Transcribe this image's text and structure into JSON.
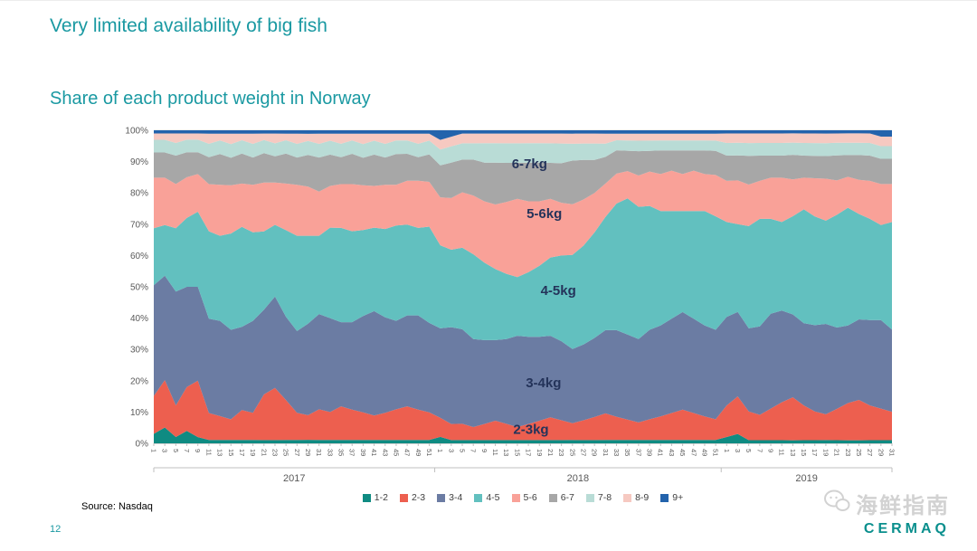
{
  "slide": {
    "title": "Very limited availability of big fish",
    "subtitle": "Share of each product weight in Norway",
    "source": "Source: Nasdaq",
    "page_number": "12",
    "watermark_text": "海鲜指南",
    "logo_text": "CERMAQ"
  },
  "chart_data": {
    "type": "area",
    "stacked": true,
    "normalized_percent": true,
    "title": "Share of each product weight in Norway",
    "ylabel": "",
    "ylim": [
      0,
      100
    ],
    "grid": true,
    "legend_position": "bottom",
    "y_ticks": [
      "0%",
      "10%",
      "20%",
      "30%",
      "40%",
      "50%",
      "60%",
      "70%",
      "80%",
      "90%",
      "100%"
    ],
    "x_axis": {
      "unit": "week",
      "years": [
        {
          "label": "2017",
          "ticks": [
            1,
            3,
            5,
            7,
            9,
            11,
            13,
            15,
            17,
            19,
            21,
            23,
            25,
            27,
            29,
            31,
            33,
            35,
            37,
            39,
            41,
            43,
            45,
            47,
            49,
            51
          ]
        },
        {
          "label": "2018",
          "ticks": [
            1,
            3,
            5,
            7,
            9,
            11,
            13,
            15,
            17,
            19,
            21,
            23,
            25,
            27,
            29,
            31,
            33,
            35,
            37,
            39,
            41,
            43,
            45,
            47,
            49,
            51
          ]
        },
        {
          "label": "2019",
          "ticks": [
            1,
            3,
            5,
            7,
            9,
            11,
            13,
            15,
            17,
            19,
            21,
            23,
            25,
            27,
            29,
            31
          ]
        }
      ]
    },
    "series": [
      {
        "name": "1-2",
        "color": "#0f8b82",
        "values": [
          3,
          5,
          2,
          4,
          2,
          1,
          1,
          1,
          1,
          1,
          1,
          1,
          1,
          1,
          1,
          1,
          1,
          1,
          1,
          1,
          1,
          1,
          1,
          1,
          1,
          1,
          2,
          1,
          1,
          1,
          1,
          1,
          1,
          1,
          1,
          1,
          1,
          1,
          1,
          1,
          1,
          1,
          1,
          1,
          1,
          1,
          1,
          1,
          1,
          1,
          1,
          1,
          2,
          3,
          1,
          1,
          1,
          1,
          1,
          1,
          1,
          1,
          1,
          1,
          1,
          1,
          1,
          1
        ]
      },
      {
        "name": "2-3",
        "color": "#ed5f4f",
        "values": [
          12,
          15,
          10,
          14,
          18,
          8,
          7,
          6,
          9,
          8,
          14,
          16,
          12,
          8,
          7,
          9,
          8,
          10,
          9,
          8,
          7,
          8,
          9,
          10,
          9,
          8,
          6,
          5,
          5,
          4,
          5,
          6,
          5,
          4,
          5,
          6,
          7,
          6,
          5,
          6,
          7,
          8,
          7,
          6,
          5,
          6,
          7,
          8,
          9,
          8,
          7,
          6,
          10,
          12,
          9,
          8,
          10,
          12,
          14,
          11,
          9,
          8,
          10,
          12,
          13,
          11,
          10,
          9
        ]
      },
      {
        "name": "3-4",
        "color": "#6b7ca3",
        "values": [
          35,
          33,
          36,
          32,
          30,
          28,
          28,
          26,
          25,
          27,
          26,
          28,
          25,
          24,
          26,
          28,
          27,
          25,
          26,
          28,
          30,
          28,
          26,
          27,
          28,
          26,
          28,
          30,
          29,
          27,
          26,
          25,
          26,
          28,
          27,
          26,
          25,
          24,
          22,
          23,
          24,
          25,
          26,
          25,
          24,
          26,
          27,
          28,
          29,
          28,
          27,
          26,
          28,
          27,
          26,
          28,
          30,
          29,
          27,
          26,
          27,
          28,
          26,
          25,
          26,
          27,
          28,
          26
        ]
      },
      {
        "name": "4-5",
        "color": "#62c0bf",
        "values": [
          18,
          16,
          20,
          22,
          24,
          26,
          25,
          28,
          30,
          26,
          24,
          22,
          26,
          28,
          25,
          23,
          26,
          28,
          27,
          25,
          24,
          26,
          28,
          27,
          26,
          28,
          26,
          24,
          25,
          26,
          24,
          22,
          20,
          18,
          20,
          22,
          24,
          26,
          28,
          30,
          32,
          34,
          38,
          40,
          38,
          36,
          34,
          32,
          30,
          32,
          34,
          33,
          30,
          28,
          32,
          34,
          30,
          28,
          32,
          36,
          34,
          32,
          36,
          38,
          34,
          32,
          30,
          34
        ]
      },
      {
        "name": "5-6",
        "color": "#f9a198",
        "values": [
          16,
          15,
          14,
          13,
          12,
          14,
          15,
          14,
          13,
          14,
          15,
          13,
          14,
          15,
          14,
          13,
          12,
          13,
          14,
          13,
          12,
          13,
          12,
          13,
          14,
          13,
          15,
          16,
          17,
          18,
          19,
          20,
          22,
          24,
          22,
          20,
          18,
          16,
          15,
          14,
          12,
          10,
          9,
          8,
          9,
          10,
          11,
          12,
          11,
          12,
          11,
          12,
          13,
          14,
          13,
          12,
          13,
          14,
          12,
          10,
          12,
          13,
          11,
          10,
          11,
          12,
          13,
          12
        ]
      },
      {
        "name": "6-7",
        "color": "#a7a7a7",
        "values": [
          8,
          8,
          9,
          8,
          7,
          8,
          9,
          8,
          9,
          8,
          9,
          8,
          9,
          8,
          9,
          10,
          9,
          8,
          9,
          8,
          9,
          8,
          9,
          8,
          7,
          8,
          10,
          11,
          10,
          11,
          12,
          13,
          12,
          11,
          12,
          12,
          11,
          12,
          13,
          12,
          10,
          8,
          7,
          6,
          7,
          6,
          7,
          6,
          7,
          6,
          7,
          7,
          8,
          8,
          9,
          8,
          7,
          7,
          8,
          7,
          7,
          7,
          8,
          7,
          8,
          8,
          8,
          8
        ]
      },
      {
        "name": "7-8",
        "color": "#b9dcd6",
        "values": [
          4,
          4,
          4,
          4,
          4,
          4,
          4,
          4,
          4,
          4,
          4,
          4,
          4,
          4,
          4,
          4,
          4,
          4,
          4,
          4,
          4,
          4,
          4,
          4,
          4,
          4,
          5,
          5,
          5,
          5,
          6,
          6,
          6,
          6,
          6,
          6,
          6,
          6,
          5,
          5,
          5,
          4,
          3,
          3,
          3,
          3,
          3,
          3,
          3,
          3,
          3,
          3,
          4,
          4,
          4,
          4,
          4,
          4,
          4,
          4,
          4,
          4,
          4,
          4,
          4,
          4,
          4,
          4
        ]
      },
      {
        "name": "8-9",
        "color": "#f6c9c1",
        "values": [
          2,
          2,
          3,
          2,
          2,
          3,
          2,
          3,
          2,
          3,
          2,
          3,
          2,
          3,
          2,
          3,
          2,
          3,
          2,
          3,
          2,
          3,
          2,
          2,
          3,
          2,
          3,
          3,
          3,
          3,
          3,
          3,
          3,
          3,
          3,
          3,
          3,
          3,
          3,
          3,
          3,
          3,
          2,
          2,
          2,
          2,
          2,
          2,
          2,
          2,
          2,
          2,
          3,
          3,
          3,
          3,
          3,
          3,
          3,
          3,
          3,
          3,
          3,
          3,
          3,
          3,
          3,
          3
        ]
      },
      {
        "name": "9+",
        "color": "#2363ac",
        "values": [
          1,
          1,
          1,
          1,
          1,
          1,
          1,
          1,
          1,
          1,
          1,
          1,
          1,
          1,
          1,
          1,
          1,
          1,
          1,
          1,
          1,
          1,
          1,
          1,
          1,
          1,
          3,
          2,
          1,
          1,
          1,
          1,
          1,
          1,
          1,
          1,
          1,
          1,
          1,
          1,
          1,
          1,
          1,
          1,
          1,
          1,
          1,
          1,
          1,
          1,
          1,
          1,
          1,
          1,
          1,
          1,
          1,
          1,
          1,
          1,
          1,
          1,
          1,
          1,
          1,
          1,
          2,
          2
        ]
      }
    ],
    "inner_labels": [
      {
        "text": "6-7kg",
        "fx": 0.509,
        "fy": 0.107
      },
      {
        "text": "5-6kg",
        "fx": 0.529,
        "fy": 0.266
      },
      {
        "text": "4-5kg",
        "fx": 0.548,
        "fy": 0.512
      },
      {
        "text": "3-4kg",
        "fx": 0.528,
        "fy": 0.806
      },
      {
        "text": "2-3kg",
        "fx": 0.511,
        "fy": 0.955
      }
    ]
  }
}
